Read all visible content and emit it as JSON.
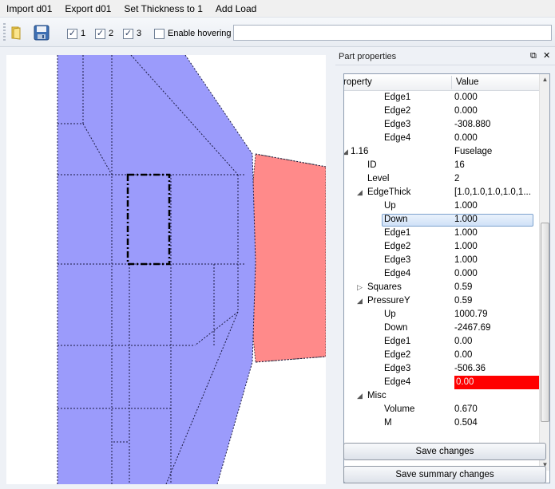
{
  "menu": [
    "Import d01",
    "Export d01",
    "Set Thickness to 1",
    "Add Load"
  ],
  "toolbar": {
    "checkboxes": [
      {
        "label": "1",
        "checked": true
      },
      {
        "label": "2",
        "checked": true
      },
      {
        "label": "3",
        "checked": true
      },
      {
        "label": "Enable hovering",
        "checked": false
      }
    ],
    "hover_input_value": ""
  },
  "panel": {
    "title": "Part properties",
    "header": {
      "property": "roperty",
      "value": "Value"
    },
    "rows": [
      {
        "label": "Edge1",
        "value": "0.000",
        "level": 3
      },
      {
        "label": "Edge2",
        "value": "0.000",
        "level": 3
      },
      {
        "label": "Edge3",
        "value": "-308.880",
        "level": 3
      },
      {
        "label": "Edge4",
        "value": "0.000",
        "level": 3
      },
      {
        "label": "1.16",
        "value": "Fuselage",
        "level": 0,
        "expander": "open"
      },
      {
        "label": "ID",
        "value": "16",
        "level": 1
      },
      {
        "label": "Level",
        "value": "2",
        "level": 1
      },
      {
        "label": "EdgeThick",
        "value": "[1.0,1.0,1.0,1.0,1...",
        "level": 1,
        "expander": "open"
      },
      {
        "label": "Up",
        "value": "1.000",
        "level": 2
      },
      {
        "label": "Down",
        "value": "1.000",
        "level": 2,
        "selected": true
      },
      {
        "label": "Edge1",
        "value": "1.000",
        "level": 2
      },
      {
        "label": "Edge2",
        "value": "1.000",
        "level": 2
      },
      {
        "label": "Edge3",
        "value": "1.000",
        "level": 2
      },
      {
        "label": "Edge4",
        "value": "0.000",
        "level": 2
      },
      {
        "label": "Squares",
        "value": "0.59",
        "level": 1,
        "expander": "closed"
      },
      {
        "label": "PressureY",
        "value": "0.59",
        "level": 1,
        "expander": "open"
      },
      {
        "label": "Up",
        "value": "1000.79",
        "level": 2
      },
      {
        "label": "Down",
        "value": "-2467.69",
        "level": 2
      },
      {
        "label": "Edge1",
        "value": "0.00",
        "level": 2
      },
      {
        "label": "Edge2",
        "value": "0.00",
        "level": 2
      },
      {
        "label": "Edge3",
        "value": "-506.36",
        "level": 2
      },
      {
        "label": "Edge4",
        "value": "0.00",
        "level": 2,
        "highlight": "#ff0000"
      },
      {
        "label": "Misc",
        "value": "",
        "level": 1,
        "expander": "open"
      },
      {
        "label": "Volume",
        "value": "0.670",
        "level": 2
      },
      {
        "label": "M",
        "value": "0.504",
        "level": 2
      }
    ],
    "buttons": {
      "save": "Save changes",
      "save_summary": "Save summary changes"
    }
  },
  "colors": {
    "selected_part": "#9b9bfb",
    "neighbor_part": "#ff8a8a",
    "highlight": "#ff0000"
  }
}
